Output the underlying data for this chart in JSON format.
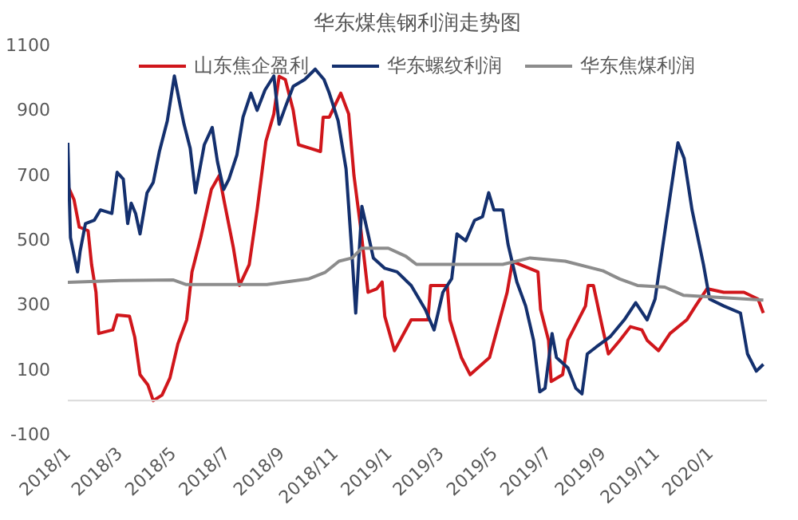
{
  "chart_data": {
    "type": "line",
    "title": "华东煤焦钢利润走势图",
    "legend": "top",
    "grid": false,
    "marker": "none",
    "line_style": "solid",
    "ylim": [
      -100,
      1100
    ],
    "yticks": [
      -100,
      100,
      300,
      500,
      700,
      900,
      1100
    ],
    "xlim": [
      "2018-01-01",
      "2020-03-05"
    ],
    "xticks": [
      {
        "value": "2018-01-01",
        "label": "2018/1"
      },
      {
        "value": "2018-03-01",
        "label": "2018/3"
      },
      {
        "value": "2018-05-01",
        "label": "2018/5"
      },
      {
        "value": "2018-07-01",
        "label": "2018/7"
      },
      {
        "value": "2018-09-01",
        "label": "2018/9"
      },
      {
        "value": "2018-11-01",
        "label": "2018/11"
      },
      {
        "value": "2019-01-01",
        "label": "2019/1"
      },
      {
        "value": "2019-03-01",
        "label": "2019/3"
      },
      {
        "value": "2019-05-01",
        "label": "2019/5"
      },
      {
        "value": "2019-07-01",
        "label": "2019/7"
      },
      {
        "value": "2019-09-01",
        "label": "2019/9"
      },
      {
        "value": "2019-11-01",
        "label": "2019/11"
      },
      {
        "value": "2020-01-01",
        "label": "2020/1"
      }
    ],
    "series": [
      {
        "name": "山东焦企盈利",
        "color": "#d0161b",
        "x": [
          "2018-01-01",
          "2018-01-08",
          "2018-01-14",
          "2018-01-24",
          "2018-01-28",
          "2018-02-02",
          "2018-02-05",
          "2018-02-21",
          "2018-02-26",
          "2018-03-12",
          "2018-03-18",
          "2018-03-24",
          "2018-04-02",
          "2018-04-08",
          "2018-04-18",
          "2018-04-27",
          "2018-05-06",
          "2018-05-16",
          "2018-05-22",
          "2018-06-01",
          "2018-06-13",
          "2018-06-22",
          "2018-06-28",
          "2018-07-08",
          "2018-07-15",
          "2018-07-26",
          "2018-08-04",
          "2018-08-14",
          "2018-08-23",
          "2018-08-29",
          "2018-09-05",
          "2018-09-14",
          "2018-09-20",
          "2018-10-03",
          "2018-10-15",
          "2018-10-18",
          "2018-10-25",
          "2018-11-07",
          "2018-11-16",
          "2018-11-22",
          "2018-11-29",
          "2018-12-08",
          "2018-12-18",
          "2018-12-24",
          "2018-12-27",
          "2019-01-07",
          "2019-01-26",
          "2019-02-14",
          "2019-02-17",
          "2019-03-08",
          "2019-03-11",
          "2019-03-24",
          "2019-04-03",
          "2019-04-25",
          "2019-05-15",
          "2019-05-21",
          "2019-06-19",
          "2019-06-22",
          "2019-07-01",
          "2019-07-04",
          "2019-07-17",
          "2019-07-23",
          "2019-08-12",
          "2019-08-15",
          "2019-08-21",
          "2019-08-31",
          "2019-09-07",
          "2019-09-20",
          "2019-10-02",
          "2019-10-15",
          "2019-10-21",
          "2019-11-03",
          "2019-11-16",
          "2019-12-05",
          "2019-12-15",
          "2019-12-28",
          "2020-01-16",
          "2020-02-08",
          "2020-02-24",
          "2020-03-01"
        ],
        "values": [
          662,
          620,
          535,
          524,
          419,
          334,
          207,
          218,
          264,
          260,
          196,
          80,
          48,
          0,
          17,
          70,
          175,
          249,
          397,
          503,
          651,
          694,
          609,
          472,
          355,
          419,
          588,
          800,
          884,
          1000,
          990,
          895,
          789,
          778,
          768,
          874,
          874,
          948,
          884,
          694,
          546,
          334,
          345,
          366,
          260,
          154,
          249,
          249,
          355,
          355,
          249,
          133,
          80,
          133,
          334,
          429,
          397,
          281,
          186,
          59,
          80,
          186,
          292,
          355,
          355,
          228,
          144,
          186,
          228,
          218,
          186,
          154,
          207,
          249,
          292,
          345,
          334,
          334,
          313,
          270
        ]
      },
      {
        "name": "华东螺纹利润",
        "color": "#14306e",
        "x": [
          "2018-01-01",
          "2018-01-04",
          "2018-01-08",
          "2018-01-12",
          "2018-01-15",
          "2018-01-21",
          "2018-01-31",
          "2018-02-07",
          "2018-02-20",
          "2018-02-26",
          "2018-03-05",
          "2018-03-10",
          "2018-03-14",
          "2018-03-19",
          "2018-03-24",
          "2018-04-01",
          "2018-04-08",
          "2018-04-15",
          "2018-04-24",
          "2018-05-02",
          "2018-05-09",
          "2018-05-13",
          "2018-05-20",
          "2018-05-26",
          "2018-06-05",
          "2018-06-14",
          "2018-06-20",
          "2018-06-27",
          "2018-07-03",
          "2018-07-12",
          "2018-07-19",
          "2018-07-28",
          "2018-08-04",
          "2018-08-13",
          "2018-08-23",
          "2018-08-29",
          "2018-09-05",
          "2018-09-14",
          "2018-09-27",
          "2018-10-09",
          "2018-10-19",
          "2018-10-25",
          "2018-11-04",
          "2018-11-13",
          "2018-11-19",
          "2018-11-24",
          "2018-11-28",
          "2018-12-01",
          "2018-12-08",
          "2018-12-14",
          "2018-12-27",
          "2019-01-10",
          "2019-01-26",
          "2019-02-11",
          "2019-02-21",
          "2019-03-03",
          "2019-03-13",
          "2019-03-19",
          "2019-03-29",
          "2019-04-08",
          "2019-04-17",
          "2019-04-24",
          "2019-04-30",
          "2019-05-10",
          "2019-05-16",
          "2019-05-26",
          "2019-06-05",
          "2019-06-14",
          "2019-06-21",
          "2019-06-27",
          "2019-07-05",
          "2019-07-10",
          "2019-07-23",
          "2019-08-01",
          "2019-08-08",
          "2019-08-14",
          "2019-08-24",
          "2019-09-09",
          "2019-09-25",
          "2019-10-08",
          "2019-10-21",
          "2019-10-30",
          "2019-11-12",
          "2019-11-25",
          "2019-12-02",
          "2019-12-11",
          "2019-12-24",
          "2019-12-31",
          "2020-01-16",
          "2020-02-04",
          "2020-02-12",
          "2020-02-22",
          "2020-03-01"
        ],
        "values": [
          795,
          503,
          450,
          397,
          461,
          546,
          556,
          588,
          577,
          704,
          683,
          546,
          609,
          577,
          514,
          641,
          673,
          768,
          863,
          1001,
          905,
          852,
          778,
          641,
          789,
          842,
          736,
          651,
          683,
          757,
          874,
          948,
          895,
          958,
          1001,
          852,
          905,
          969,
          990,
          1022,
          990,
          948,
          863,
          715,
          482,
          270,
          461,
          599,
          514,
          440,
          408,
          397,
          355,
          281,
          218,
          334,
          376,
          514,
          493,
          556,
          567,
          641,
          588,
          588,
          482,
          366,
          292,
          186,
          27,
          38,
          207,
          133,
          101,
          38,
          21,
          144,
          165,
          197,
          249,
          302,
          249,
          313,
          556,
          795,
          747,
          588,
          419,
          313,
          292,
          270,
          144,
          91,
          112
        ]
      },
      {
        "name": "华东焦煤利润",
        "color": "#8c8c8c",
        "x": [
          "2018-01-01",
          "2018-03-01",
          "2018-05-01",
          "2018-05-15",
          "2018-08-15",
          "2018-10-01",
          "2018-10-20",
          "2018-11-05",
          "2018-11-20",
          "2018-12-01",
          "2018-12-31",
          "2019-01-20",
          "2019-02-01",
          "2019-05-10",
          "2019-06-10",
          "2019-07-20",
          "2019-09-01",
          "2019-09-20",
          "2019-10-10",
          "2019-11-10",
          "2019-12-01",
          "2020-01-01",
          "2020-03-01"
        ],
        "values": [
          365,
          370,
          372,
          358,
          358,
          375,
          395,
          430,
          440,
          470,
          470,
          445,
          420,
          420,
          440,
          430,
          400,
          375,
          355,
          350,
          325,
          320,
          310
        ]
      }
    ]
  }
}
